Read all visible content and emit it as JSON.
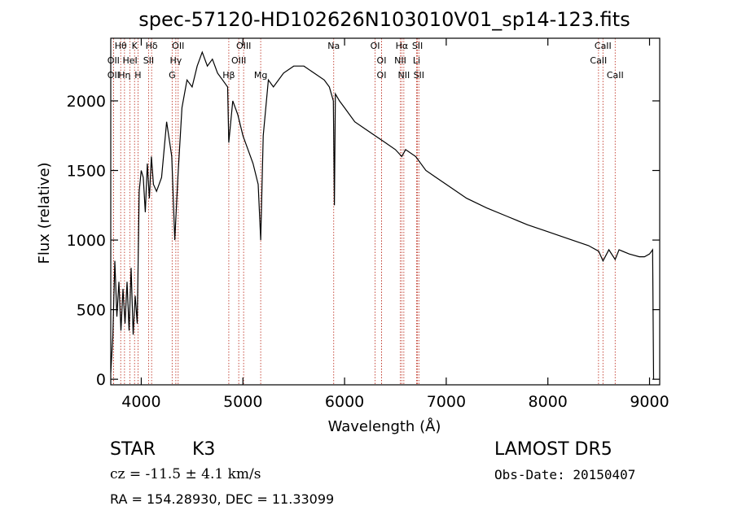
{
  "chart_data": {
    "type": "line",
    "title": "spec-57120-HD102626N103010V01_sp14-123.fits",
    "xlabel": "Wavelength (Å)",
    "ylabel": "Flux (relative)",
    "xlim": [
      3700,
      9100
    ],
    "ylim": [
      -40,
      2450
    ],
    "xticks": [
      4000,
      5000,
      6000,
      7000,
      8000,
      9000
    ],
    "yticks": [
      0,
      500,
      1000,
      1500,
      2000
    ],
    "grid": false,
    "series": [
      {
        "x": [
          3700,
          3720,
          3740,
          3760,
          3780,
          3800,
          3820,
          3840,
          3860,
          3880,
          3900,
          3920,
          3940,
          3960,
          3980,
          4000,
          4020,
          4040,
          4060,
          4080,
          4100,
          4120,
          4150,
          4200,
          4250,
          4300,
          4330,
          4360,
          4400,
          4450,
          4500,
          4550,
          4600,
          4650,
          4700,
          4750,
          4800,
          4850,
          4861,
          4900,
          4950,
          5000,
          5050,
          5100,
          5150,
          5175,
          5200,
          5250,
          5300,
          5400,
          5500,
          5600,
          5700,
          5800,
          5850,
          5890,
          5900,
          5910,
          5950,
          6000,
          6100,
          6200,
          6300,
          6400,
          6500,
          6563,
          6600,
          6700,
          6800,
          6900,
          7000,
          7200,
          7400,
          7600,
          7800,
          8000,
          8200,
          8400,
          8500,
          8542,
          8600,
          8662,
          8700,
          8800,
          8900,
          8950,
          9000,
          9020,
          9030,
          9040
        ],
        "y": [
          50,
          300,
          850,
          450,
          700,
          350,
          650,
          400,
          700,
          350,
          800,
          320,
          600,
          400,
          1350,
          1500,
          1450,
          1200,
          1550,
          1300,
          1600,
          1400,
          1350,
          1450,
          1850,
          1600,
          1000,
          1450,
          1950,
          2150,
          2100,
          2250,
          2350,
          2250,
          2300,
          2200,
          2150,
          2100,
          1700,
          2000,
          1900,
          1750,
          1650,
          1550,
          1400,
          1000,
          1750,
          2150,
          2100,
          2200,
          2250,
          2250,
          2200,
          2150,
          2100,
          2000,
          1250,
          2050,
          2000,
          1950,
          1850,
          1800,
          1750,
          1700,
          1650,
          1600,
          1650,
          1600,
          1500,
          1450,
          1400,
          1300,
          1230,
          1170,
          1110,
          1060,
          1010,
          960,
          920,
          850,
          930,
          860,
          930,
          900,
          880,
          880,
          900,
          920,
          930,
          0
        ]
      }
    ],
    "line_markers": [
      {
        "label": "Hθ",
        "x": 3798
      },
      {
        "label": "K",
        "x": 3934
      },
      {
        "label": "Hδ",
        "x": 4102
      },
      {
        "label": "OII",
        "x": 4363
      },
      {
        "label": "OIII",
        "x": 5007
      },
      {
        "label": "Na",
        "x": 5893
      },
      {
        "label": "OI",
        "x": 6300
      },
      {
        "label": "Hα",
        "x": 6563
      },
      {
        "label": "SII",
        "x": 6717
      },
      {
        "label": "CaII",
        "x": 8542
      },
      {
        "label": "OII",
        "x": 3727
      },
      {
        "label": "HeI",
        "x": 3889
      },
      {
        "label": "SII",
        "x": 4072
      },
      {
        "label": "Hγ",
        "x": 4340
      },
      {
        "label": "OIII",
        "x": 4959
      },
      {
        "label": "OI",
        "x": 6364
      },
      {
        "label": "NII",
        "x": 6548
      },
      {
        "label": "Li",
        "x": 6708
      },
      {
        "label": "CaII",
        "x": 8498
      },
      {
        "label": "OII",
        "x": 3727
      },
      {
        "label": "Hη",
        "x": 3835
      },
      {
        "label": "H",
        "x": 3968
      },
      {
        "label": "G",
        "x": 4304
      },
      {
        "label": "Hβ",
        "x": 4861
      },
      {
        "label": "Mg",
        "x": 5175
      },
      {
        "label": "OI",
        "x": 6364
      },
      {
        "label": "NII",
        "x": 6583
      },
      {
        "label": "SII",
        "x": 6731
      },
      {
        "label": "CaII",
        "x": 8662
      }
    ]
  },
  "info": {
    "class_label": "STAR",
    "subclass": "K3",
    "survey": "LAMOST  DR5",
    "redshift": "cz = -11.5 ± 4.1 km/s",
    "obs_date": "Obs-Date: 20150407",
    "coords": "RA = 154.28930, DEC =  11.33099"
  },
  "colors": {
    "marker": "#c0392b",
    "spectrum": "#000000"
  }
}
